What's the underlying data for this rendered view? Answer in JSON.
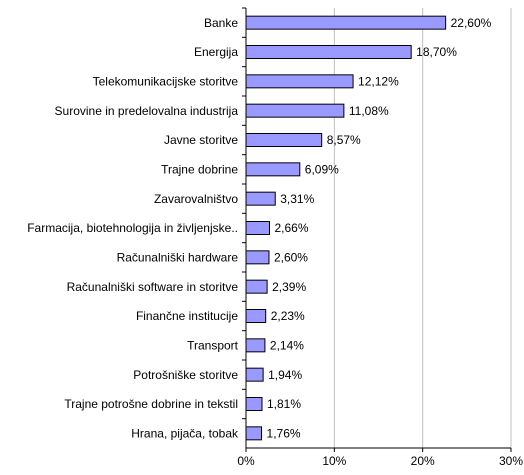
{
  "chart_data": {
    "type": "hbar",
    "categories": [
      "Banke",
      "Energija",
      "Telekomunikacijske storitve",
      "Surovine in predelovalna industrija",
      "Javne storitve",
      "Trajne dobrine",
      "Zavarovalništvo",
      "Farmacija, biotehnologija in življenjske..",
      "Računalniški hardware",
      "Računalniški software in storitve",
      "Finančne institucije",
      "Transport",
      "Potrošniške storitve",
      "Trajne potrošne dobrine in tekstil",
      "Hrana, pijača, tobak"
    ],
    "values": [
      22.6,
      18.7,
      12.12,
      11.08,
      8.57,
      6.09,
      3.31,
      2.66,
      2.6,
      2.39,
      2.23,
      2.14,
      1.94,
      1.81,
      1.76
    ],
    "value_labels": [
      "22,60%",
      "18,70%",
      "12,12%",
      "11,08%",
      "8,57%",
      "6,09%",
      "3,31%",
      "2,66%",
      "2,60%",
      "2,39%",
      "2,23%",
      "2,14%",
      "1,94%",
      "1,81%",
      "1,76%"
    ],
    "color": "#9999ff",
    "xlim": [
      0,
      30
    ],
    "xticks": [
      {
        "value": 0,
        "label": "0%"
      },
      {
        "value": 10,
        "label": "10%"
      },
      {
        "value": 20,
        "label": "20%"
      },
      {
        "value": 30,
        "label": "30%"
      }
    ],
    "grid": true
  }
}
